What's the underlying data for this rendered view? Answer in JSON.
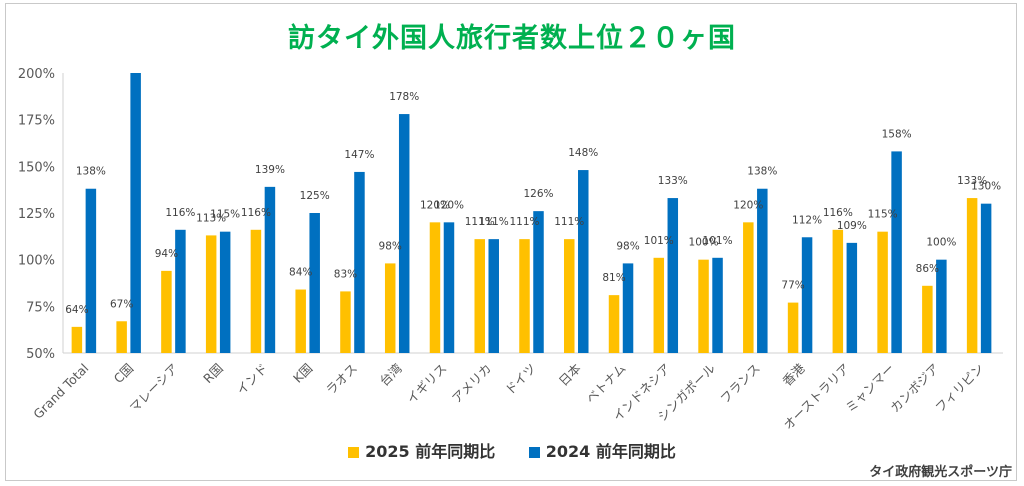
{
  "chart_data": {
    "type": "bar",
    "title": "訪タイ外国人旅行者数上位２０ヶ国",
    "source": "タイ政府観光スポーツ庁",
    "categories": [
      "Grand Total",
      "C国",
      "マレーシア",
      "R国",
      "インド",
      "K国",
      "ラオス",
      "台湾",
      "イギリス",
      "アメリカ",
      "ドイツ",
      "日本",
      "ベトナム",
      "インドネシア",
      "シンガポール",
      "フランス",
      "香港",
      "オーストラリア",
      "ミャンマー",
      "カンボジア",
      "フィリピン"
    ],
    "series": [
      {
        "name": "2025 前年同期比",
        "color": "#ffc000",
        "values": [
          64,
          67,
          94,
          113,
          116,
          84,
          83,
          98,
          120,
          111,
          111,
          111,
          81,
          101,
          100,
          120,
          77,
          116,
          115,
          86,
          133
        ],
        "labels": [
          "64%",
          "67%",
          "94%",
          "113%",
          "116%",
          "84%",
          "83%",
          "98%",
          "120%",
          "111%",
          "111%",
          "111%",
          "81%",
          "101%",
          "100%",
          "120%",
          "77%",
          "116%",
          "115%",
          "86%",
          "133%"
        ]
      },
      {
        "name": "2024 前年同期比",
        "color": "#0070c0",
        "values": [
          138,
          200,
          116,
          115,
          139,
          125,
          147,
          178,
          120,
          111,
          126,
          148,
          98,
          133,
          101,
          138,
          112,
          109,
          158,
          100,
          130
        ],
        "labels": [
          "138%",
          "",
          "116%",
          "115%",
          "139%",
          "125%",
          "147%",
          "178%",
          "120%",
          "111%",
          "126%",
          "148%",
          "98%",
          "133%",
          "101%",
          "138%",
          "112%",
          "109%",
          "158%",
          "100%",
          "130%"
        ]
      }
    ],
    "ylim": [
      50,
      200
    ],
    "yticks": [
      "50%",
      "75%",
      "100%",
      "125%",
      "150%",
      "175%",
      "200%"
    ],
    "ytick_values": [
      50,
      75,
      100,
      125,
      150,
      175,
      200
    ],
    "grid": false,
    "legend_position": "bottom"
  }
}
